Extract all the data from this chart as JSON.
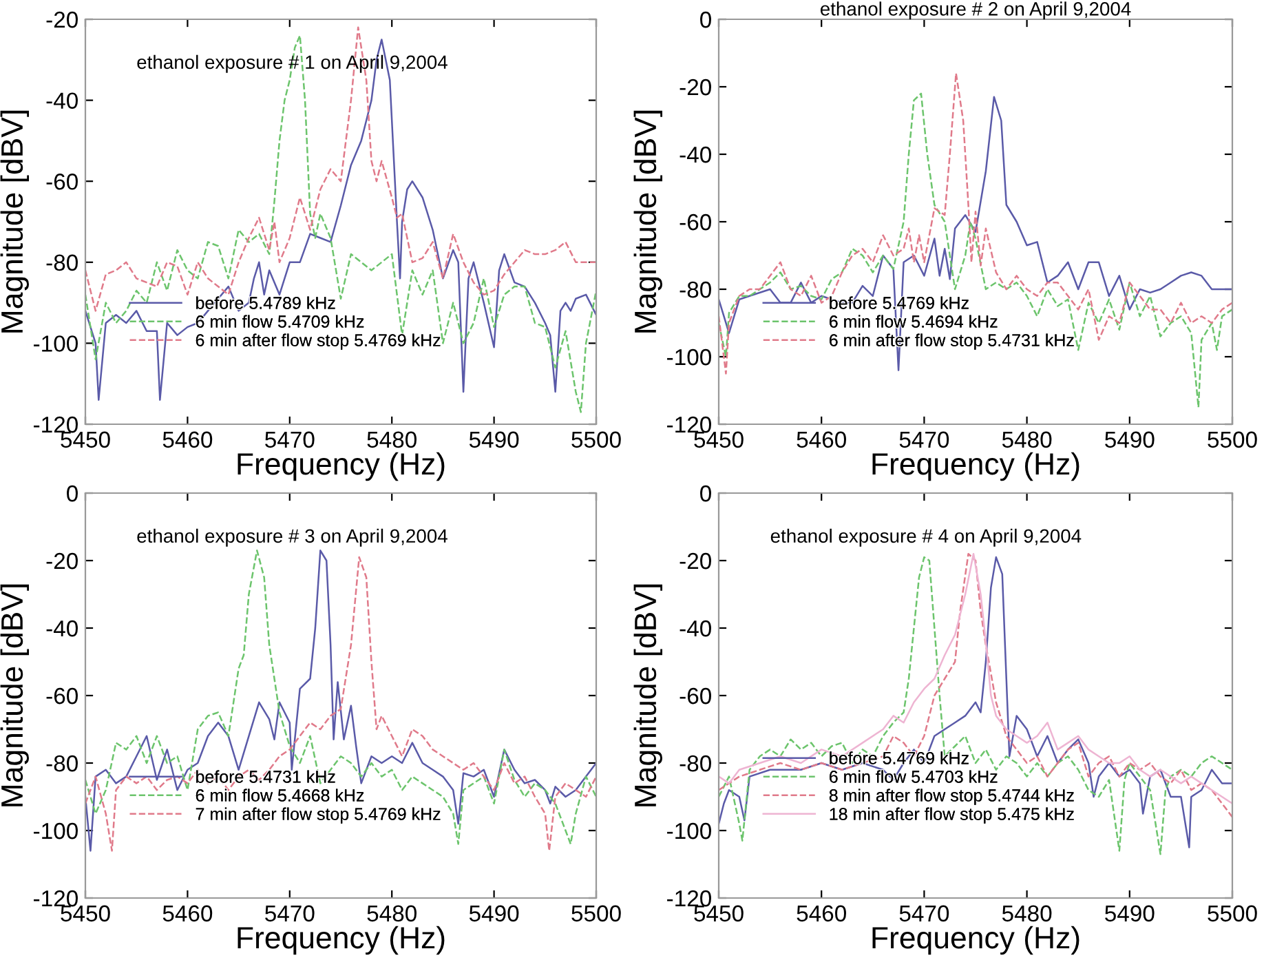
{
  "chart_data": [
    {
      "type": "line",
      "xlabel": "Frequency (Hz)",
      "ylabel": "Magnitude [dBV]",
      "annotations": [
        "ethanol exposure # 1 on April 9,2004"
      ],
      "xlim": [
        5450,
        5500
      ],
      "xticks": [
        5450,
        5460,
        5470,
        5480,
        5490,
        5500
      ],
      "ylim": [
        -120,
        -20
      ],
      "yticks": [
        -120,
        -100,
        -80,
        -60,
        -40,
        -20
      ],
      "legend": "bottom left",
      "grid": false,
      "series": [
        {
          "name": "before 5.4789 kHz",
          "color": "#5a5aa8",
          "line_style": "solid",
          "x": [
            5450,
            5451,
            5451.3,
            5452,
            5453,
            5454,
            5455,
            5456,
            5457,
            5457.3,
            5458,
            5459,
            5460,
            5461,
            5462,
            5463,
            5464,
            5465,
            5466,
            5466.5,
            5467,
            5467.5,
            5468,
            5469,
            5470,
            5471,
            5472,
            5473,
            5474,
            5475,
            5476,
            5477,
            5477.5,
            5478,
            5478.5,
            5479,
            5479.8,
            5480.5,
            5480.8,
            5481,
            5481.5,
            5482,
            5483,
            5484,
            5485,
            5486,
            5486.5,
            5487,
            5487.5,
            5488,
            5489,
            5490,
            5490.5,
            5491,
            5492,
            5493,
            5494,
            5495,
            5495.5,
            5496,
            5496.5,
            5497,
            5497.5,
            5498,
            5499,
            5500
          ],
          "values": [
            -92,
            -100,
            -114,
            -95,
            -93,
            -95,
            -92,
            -97,
            -97,
            -114,
            -95,
            -98,
            -96,
            -95,
            -92,
            -89,
            -86,
            -92,
            -90,
            -84,
            -80,
            -88,
            -82,
            -88,
            -80,
            -80,
            -73,
            -74,
            -75,
            -66,
            -56,
            -50,
            -45,
            -40,
            -30,
            -25,
            -35,
            -70,
            -84,
            -70,
            -62,
            -60,
            -64,
            -72,
            -84,
            -77,
            -80,
            -112,
            -84,
            -80,
            -90,
            -101,
            -82,
            -78,
            -85,
            -86,
            -90,
            -95,
            -98,
            -112,
            -92,
            -90,
            -92,
            -89,
            -88,
            -93
          ]
        },
        {
          "name": "6 min flow 5.4709 kHz",
          "color": "#6cc46c",
          "line_style": "dashed",
          "x": [
            5450,
            5451,
            5452,
            5453,
            5454,
            5455,
            5456,
            5457,
            5458,
            5459,
            5460,
            5461,
            5462,
            5463,
            5464,
            5465,
            5466,
            5467,
            5468,
            5468.5,
            5469,
            5469.5,
            5470,
            5470.5,
            5471,
            5471.5,
            5472,
            5472.5,
            5473,
            5474,
            5475,
            5476,
            5477,
            5478,
            5479,
            5480,
            5481,
            5482,
            5483,
            5484,
            5485,
            5486,
            5487,
            5488,
            5489,
            5490,
            5491,
            5492,
            5493,
            5494,
            5495,
            5496,
            5497,
            5498,
            5498.5,
            5499,
            5500
          ],
          "values": [
            -88,
            -104,
            -90,
            -95,
            -92,
            -87,
            -90,
            -80,
            -87,
            -77,
            -82,
            -84,
            -75,
            -76,
            -84,
            -72,
            -75,
            -73,
            -78,
            -65,
            -50,
            -40,
            -35,
            -27,
            -24,
            -40,
            -68,
            -74,
            -68,
            -74,
            -89,
            -78,
            -80,
            -82,
            -80,
            -78,
            -98,
            -82,
            -88,
            -82,
            -100,
            -90,
            -100,
            -95,
            -84,
            -96,
            -88,
            -86,
            -86,
            -95,
            -96,
            -106,
            -97,
            -112,
            -117,
            -100,
            -87
          ]
        },
        {
          "name": "6 min after flow stop 5.4769 kHz",
          "color": "#e07a8a",
          "line_style": "dashed",
          "x": [
            5450,
            5451,
            5452,
            5453,
            5454,
            5455,
            5456,
            5457,
            5458,
            5459,
            5460,
            5461,
            5462,
            5463,
            5464,
            5465,
            5466,
            5467,
            5468,
            5468.5,
            5469,
            5470,
            5471,
            5472,
            5473,
            5474,
            5475,
            5476,
            5476.7,
            5477.5,
            5478,
            5478.5,
            5479,
            5480,
            5480.5,
            5481,
            5482,
            5483,
            5484,
            5485,
            5486,
            5487,
            5488,
            5489,
            5490,
            5491,
            5492,
            5493,
            5494,
            5495,
            5496,
            5497,
            5498,
            5499,
            5500
          ],
          "values": [
            -82,
            -92,
            -83,
            -82,
            -80,
            -84,
            -85,
            -86,
            -80,
            -81,
            -88,
            -80,
            -84,
            -86,
            -88,
            -80,
            -74,
            -69,
            -77,
            -70,
            -80,
            -74,
            -64,
            -72,
            -62,
            -57,
            -60,
            -40,
            -22,
            -35,
            -55,
            -60,
            -55,
            -64,
            -69,
            -68,
            -80,
            -79,
            -75,
            -84,
            -73,
            -80,
            -85,
            -88,
            -87,
            -83,
            -80,
            -77,
            -78,
            -78,
            -77,
            -75,
            -80,
            -80,
            -80
          ]
        }
      ]
    },
    {
      "type": "line",
      "title": "ethanol exposure # 2 on April 9,2004",
      "xlabel": "Frequency (Hz)",
      "ylabel": "Magnitude [dBV]",
      "xlim": [
        5450,
        5500
      ],
      "xticks": [
        5450,
        5460,
        5470,
        5480,
        5490,
        5500
      ],
      "ylim": [
        -120,
        0
      ],
      "yticks": [
        -120,
        -100,
        -80,
        -60,
        -40,
        -20,
        0
      ],
      "legend": "bottom left",
      "grid": false,
      "series": [
        {
          "name": "before 5.4769 kHz",
          "color": "#5a5aa8",
          "line_style": "solid",
          "x": [
            5450,
            5451,
            5452,
            5453,
            5455,
            5456,
            5457,
            5458,
            5459,
            5460,
            5462,
            5463,
            5464,
            5465,
            5466,
            5467,
            5467.5,
            5468,
            5469,
            5470,
            5471,
            5471.5,
            5472,
            5472.5,
            5473,
            5474,
            5475,
            5476,
            5476.8,
            5477.5,
            5478,
            5479,
            5480,
            5481,
            5482,
            5483,
            5484,
            5485,
            5486,
            5487,
            5488,
            5489,
            5490,
            5491,
            5492,
            5493,
            5494,
            5495,
            5496,
            5497,
            5498,
            5499,
            5500
          ],
          "values": [
            -83,
            -93,
            -83,
            -82,
            -80,
            -84,
            -84,
            -78,
            -84,
            -82,
            -84,
            -84,
            -79,
            -82,
            -70,
            -74,
            -104,
            -72,
            -70,
            -76,
            -65,
            -76,
            -68,
            -77,
            -62,
            -58,
            -63,
            -45,
            -23,
            -30,
            -55,
            -60,
            -67,
            -66,
            -78,
            -76,
            -72,
            -80,
            -72,
            -72,
            -82,
            -76,
            -86,
            -80,
            -81,
            -80,
            -78,
            -76,
            -75,
            -76,
            -80,
            -80,
            -80
          ]
        },
        {
          "name": "6 min flow 5.4694 kHz",
          "color": "#6cc46c",
          "line_style": "dashed",
          "x": [
            5450,
            5450.7,
            5451,
            5452,
            5453,
            5454,
            5455,
            5456,
            5457,
            5458,
            5459,
            5460,
            5461,
            5462,
            5463,
            5464,
            5465,
            5466,
            5467,
            5468,
            5468.5,
            5469,
            5469.7,
            5470.3,
            5471,
            5472,
            5473,
            5474,
            5474.5,
            5475,
            5476,
            5477,
            5478,
            5479,
            5480,
            5481,
            5482,
            5483,
            5484,
            5485,
            5486,
            5487,
            5488,
            5489,
            5490,
            5491,
            5492,
            5493,
            5494,
            5495,
            5496,
            5496.7,
            5497,
            5498,
            5498.5,
            5499,
            5500
          ],
          "values": [
            -90,
            -100,
            -87,
            -82,
            -82,
            -80,
            -78,
            -75,
            -80,
            -79,
            -82,
            -83,
            -77,
            -75,
            -68,
            -70,
            -75,
            -70,
            -74,
            -60,
            -40,
            -24,
            -22,
            -40,
            -55,
            -60,
            -80,
            -70,
            -60,
            -65,
            -80,
            -78,
            -80,
            -78,
            -82,
            -88,
            -80,
            -85,
            -83,
            -98,
            -84,
            -90,
            -83,
            -92,
            -78,
            -88,
            -82,
            -94,
            -90,
            -88,
            -93,
            -115,
            -95,
            -90,
            -98,
            -88,
            -86
          ]
        },
        {
          "name": "6 min after flow stop 5.4731 kHz",
          "color": "#e07a8a",
          "line_style": "dashed",
          "x": [
            5450,
            5450.7,
            5451,
            5452,
            5453,
            5454,
            5455,
            5456,
            5457,
            5458,
            5459,
            5460,
            5461,
            5462,
            5463,
            5464,
            5465,
            5466,
            5467,
            5468,
            5468.5,
            5469,
            5469.5,
            5470,
            5471,
            5472,
            5472.5,
            5473.1,
            5473.8,
            5474.3,
            5474.6,
            5475,
            5475.5,
            5476,
            5477,
            5478,
            5479,
            5480,
            5481,
            5482,
            5483,
            5484,
            5485,
            5486,
            5487,
            5488,
            5489,
            5490,
            5491,
            5492,
            5493,
            5494,
            5495,
            5496,
            5497,
            5498,
            5499,
            5500
          ],
          "values": [
            -88,
            -105,
            -90,
            -82,
            -80,
            -80,
            -76,
            -72,
            -80,
            -82,
            -76,
            -84,
            -82,
            -75,
            -70,
            -68,
            -72,
            -64,
            -70,
            -68,
            -62,
            -72,
            -64,
            -72,
            -56,
            -58,
            -40,
            -16,
            -30,
            -55,
            -72,
            -57,
            -73,
            -62,
            -75,
            -80,
            -76,
            -80,
            -82,
            -78,
            -78,
            -82,
            -86,
            -80,
            -95,
            -88,
            -90,
            -78,
            -82,
            -86,
            -86,
            -90,
            -84,
            -90,
            -88,
            -90,
            -86,
            -84
          ]
        }
      ]
    },
    {
      "type": "line",
      "xlabel": "Frequency (Hz)",
      "ylabel": "Magnitude [dBV]",
      "annotations": [
        "ethanol exposure # 3 on April 9,2004"
      ],
      "xlim": [
        5450,
        5500
      ],
      "xticks": [
        5450,
        5460,
        5470,
        5480,
        5490,
        5500
      ],
      "ylim": [
        -120,
        0
      ],
      "yticks": [
        -120,
        -100,
        -80,
        -60,
        -40,
        -20,
        0
      ],
      "legend": "bottom left",
      "grid": false,
      "series": [
        {
          "name": "before 5.4731 kHz",
          "color": "#5a5aa8",
          "line_style": "solid",
          "x": [
            5450,
            5450.5,
            5451,
            5452,
            5453,
            5454,
            5455,
            5456,
            5457,
            5458,
            5459,
            5460,
            5461,
            5462,
            5463,
            5464,
            5465,
            5466,
            5467,
            5468,
            5468.5,
            5469,
            5470,
            5470.2,
            5471,
            5472,
            5472.5,
            5473,
            5473.6,
            5474,
            5474.3,
            5474.7,
            5475.3,
            5476,
            5476.5,
            5477,
            5478,
            5479,
            5480,
            5481,
            5482,
            5483,
            5484,
            5485,
            5486,
            5486.5,
            5487,
            5488,
            5489,
            5490,
            5491,
            5492,
            5493,
            5494,
            5495,
            5495.5,
            5496,
            5497,
            5498,
            5499,
            5500
          ],
          "values": [
            -90,
            -106,
            -84,
            -82,
            -86,
            -84,
            -78,
            -72,
            -85,
            -76,
            -88,
            -82,
            -80,
            -72,
            -68,
            -72,
            -82,
            -72,
            -62,
            -67,
            -73,
            -62,
            -68,
            -82,
            -58,
            -55,
            -40,
            -17,
            -20,
            -45,
            -73,
            -56,
            -73,
            -63,
            -75,
            -86,
            -78,
            -80,
            -78,
            -80,
            -74,
            -80,
            -82,
            -84,
            -88,
            -98,
            -83,
            -84,
            -82,
            -90,
            -76,
            -82,
            -86,
            -85,
            -88,
            -92,
            -87,
            -90,
            -88,
            -84,
            -80
          ]
        },
        {
          "name": "6 min flow 5.4668 kHz",
          "color": "#6cc46c",
          "line_style": "dashed",
          "x": [
            5450,
            5451,
            5452,
            5453,
            5454,
            5455,
            5456,
            5457,
            5458,
            5459,
            5460,
            5461,
            5462,
            5463,
            5464,
            5465,
            5465.5,
            5466,
            5466.8,
            5467.5,
            5468,
            5469,
            5470,
            5471,
            5472,
            5473,
            5474,
            5475,
            5476,
            5477,
            5478,
            5479,
            5480,
            5481,
            5482,
            5483,
            5484,
            5485,
            5486,
            5486.5,
            5487,
            5488,
            5489,
            5490,
            5491,
            5492,
            5493,
            5494,
            5495,
            5496,
            5497,
            5497.5,
            5498,
            5499,
            5500
          ],
          "values": [
            -85,
            -95,
            -88,
            -74,
            -76,
            -72,
            -80,
            -72,
            -80,
            -78,
            -88,
            -70,
            -66,
            -65,
            -72,
            -52,
            -48,
            -30,
            -17,
            -25,
            -45,
            -65,
            -75,
            -80,
            -72,
            -86,
            -82,
            -78,
            -80,
            -84,
            -80,
            -84,
            -82,
            -88,
            -84,
            -86,
            -88,
            -90,
            -95,
            -104,
            -88,
            -86,
            -84,
            -92,
            -76,
            -85,
            -90,
            -86,
            -88,
            -92,
            -100,
            -104,
            -95,
            -84,
            -90
          ]
        },
        {
          "name": "7 min after flow stop 5.4769 kHz",
          "color": "#e07a8a",
          "line_style": "dashed",
          "x": [
            5450,
            5451,
            5452,
            5452.6,
            5453,
            5454,
            5455,
            5456,
            5457,
            5458,
            5459,
            5460,
            5461,
            5462,
            5463,
            5464,
            5465,
            5466,
            5467,
            5468,
            5469,
            5470,
            5471,
            5472,
            5473,
            5474,
            5475,
            5476,
            5476.8,
            5477.5,
            5478,
            5478.5,
            5479,
            5480,
            5481,
            5482,
            5483,
            5484,
            5485,
            5486,
            5487,
            5488,
            5489,
            5490,
            5491,
            5492,
            5493,
            5494,
            5495,
            5495.4,
            5496,
            5497,
            5498,
            5499,
            5500
          ],
          "values": [
            -92,
            -84,
            -95,
            -106,
            -88,
            -84,
            -86,
            -84,
            -88,
            -85,
            -84,
            -86,
            -82,
            -86,
            -84,
            -88,
            -84,
            -82,
            -85,
            -82,
            -78,
            -76,
            -72,
            -68,
            -70,
            -66,
            -64,
            -45,
            -19,
            -25,
            -50,
            -70,
            -66,
            -72,
            -78,
            -70,
            -72,
            -76,
            -78,
            -80,
            -82,
            -80,
            -84,
            -88,
            -80,
            -86,
            -84,
            -90,
            -95,
            -106,
            -90,
            -86,
            -88,
            -90,
            -84
          ]
        }
      ]
    },
    {
      "type": "line",
      "xlabel": "Frequency (Hz)",
      "ylabel": "Magnitude [dBV]",
      "annotations": [
        "ethanol exposure # 4 on April 9,2004"
      ],
      "xlim": [
        5450,
        5500
      ],
      "xticks": [
        5450,
        5460,
        5470,
        5480,
        5490,
        5500
      ],
      "ylim": [
        -120,
        0
      ],
      "yticks": [
        -120,
        -100,
        -80,
        -60,
        -40,
        -20,
        0
      ],
      "legend": "bottom left",
      "grid": false,
      "series": [
        {
          "name": "before 5.4769 kHz",
          "color": "#5a5aa8",
          "line_style": "solid",
          "x": [
            5450,
            5450.5,
            5451,
            5452,
            5452.5,
            5453,
            5455,
            5456,
            5458,
            5460,
            5462,
            5464,
            5466,
            5467,
            5468,
            5469,
            5470,
            5471,
            5472,
            5473,
            5474,
            5475,
            5475.5,
            5476,
            5476.5,
            5477,
            5477.6,
            5478,
            5478.3,
            5479,
            5480,
            5481,
            5482,
            5483,
            5484,
            5485,
            5486,
            5486.5,
            5487,
            5488,
            5489,
            5490,
            5491,
            5491.3,
            5492,
            5493,
            5494,
            5495,
            5495.8,
            5496,
            5497,
            5498,
            5499,
            5500
          ],
          "values": [
            -98,
            -92,
            -88,
            -90,
            -97,
            -84,
            -82,
            -82,
            -82,
            -80,
            -82,
            -80,
            -82,
            -85,
            -80,
            -76,
            -80,
            -72,
            -70,
            -68,
            -66,
            -62,
            -65,
            -50,
            -28,
            -19,
            -24,
            -55,
            -78,
            -66,
            -70,
            -78,
            -72,
            -80,
            -76,
            -73,
            -80,
            -90,
            -84,
            -80,
            -84,
            -82,
            -86,
            -95,
            -84,
            -82,
            -90,
            -90,
            -105,
            -90,
            -88,
            -82,
            -86,
            -86
          ]
        },
        {
          "name": "6 min flow 5.4703 kHz",
          "color": "#6cc46c",
          "line_style": "dashed",
          "x": [
            5450,
            5451,
            5452,
            5452.3,
            5453,
            5454,
            5455,
            5456,
            5457,
            5458,
            5459,
            5460,
            5461,
            5462,
            5463,
            5464,
            5465,
            5466,
            5467,
            5468,
            5468.5,
            5469,
            5469.5,
            5470,
            5470.5,
            5471,
            5471.5,
            5472,
            5473,
            5474,
            5475,
            5476,
            5477,
            5478,
            5479,
            5480,
            5481,
            5482,
            5483,
            5484,
            5485,
            5486,
            5487,
            5488,
            5489,
            5489.5,
            5490,
            5491,
            5492,
            5493,
            5493.5,
            5494,
            5495,
            5496,
            5497,
            5498,
            5499,
            5500
          ],
          "values": [
            -90,
            -84,
            -98,
            -103,
            -82,
            -78,
            -76,
            -78,
            -73,
            -76,
            -74,
            -78,
            -75,
            -74,
            -80,
            -76,
            -78,
            -72,
            -68,
            -65,
            -55,
            -40,
            -25,
            -19,
            -20,
            -40,
            -60,
            -78,
            -75,
            -72,
            -80,
            -76,
            -82,
            -78,
            -80,
            -84,
            -80,
            -84,
            -80,
            -78,
            -82,
            -88,
            -90,
            -85,
            -106,
            -85,
            -80,
            -84,
            -88,
            -107,
            -88,
            -84,
            -82,
            -84,
            -80,
            -78,
            -80,
            -82
          ]
        },
        {
          "name": "8 min after flow stop 5.4744 kHz",
          "color": "#e07a8a",
          "line_style": "dashed",
          "x": [
            5450,
            5451,
            5452,
            5454,
            5456,
            5458,
            5460,
            5462,
            5464,
            5466,
            5467,
            5468,
            5469,
            5470,
            5471,
            5472,
            5473,
            5473.5,
            5474.3,
            5475,
            5475.5,
            5476,
            5477,
            5478,
            5479,
            5480,
            5481,
            5482,
            5483,
            5484,
            5485,
            5486,
            5487,
            5488,
            5489,
            5490,
            5491,
            5492,
            5493,
            5494,
            5495,
            5496,
            5497,
            5498,
            5499,
            5500
          ],
          "values": [
            -88,
            -86,
            -84,
            -82,
            -80,
            -82,
            -80,
            -82,
            -80,
            -78,
            -72,
            -74,
            -78,
            -72,
            -60,
            -55,
            -50,
            -35,
            -18,
            -20,
            -35,
            -45,
            -62,
            -72,
            -76,
            -80,
            -78,
            -84,
            -80,
            -76,
            -74,
            -84,
            -80,
            -78,
            -84,
            -80,
            -82,
            -80,
            -84,
            -86,
            -82,
            -88,
            -86,
            -88,
            -92,
            -96
          ]
        },
        {
          "name": "18 min after flow stop 5.475 kHz",
          "color": "#eeb4d2",
          "line_style": "solid",
          "x": [
            5450,
            5451,
            5452,
            5454,
            5456,
            5458,
            5460,
            5462,
            5464,
            5466,
            5467,
            5468,
            5469,
            5470,
            5471,
            5472,
            5473,
            5474,
            5474.8,
            5475.5,
            5476,
            5476.5,
            5477,
            5478,
            5479,
            5480,
            5481,
            5482,
            5483,
            5484,
            5485,
            5486,
            5487,
            5488,
            5489,
            5490,
            5491,
            5492,
            5493,
            5494,
            5495,
            5496,
            5497,
            5498,
            5499,
            5500
          ],
          "values": [
            -84,
            -86,
            -82,
            -80,
            -78,
            -80,
            -76,
            -78,
            -74,
            -70,
            -66,
            -68,
            -62,
            -58,
            -55,
            -48,
            -42,
            -30,
            -18,
            -30,
            -44,
            -60,
            -66,
            -70,
            -72,
            -74,
            -72,
            -68,
            -76,
            -74,
            -72,
            -76,
            -78,
            -80,
            -80,
            -78,
            -82,
            -84,
            -82,
            -84,
            -86,
            -84,
            -86,
            -88,
            -90,
            -92
          ]
        }
      ]
    }
  ]
}
